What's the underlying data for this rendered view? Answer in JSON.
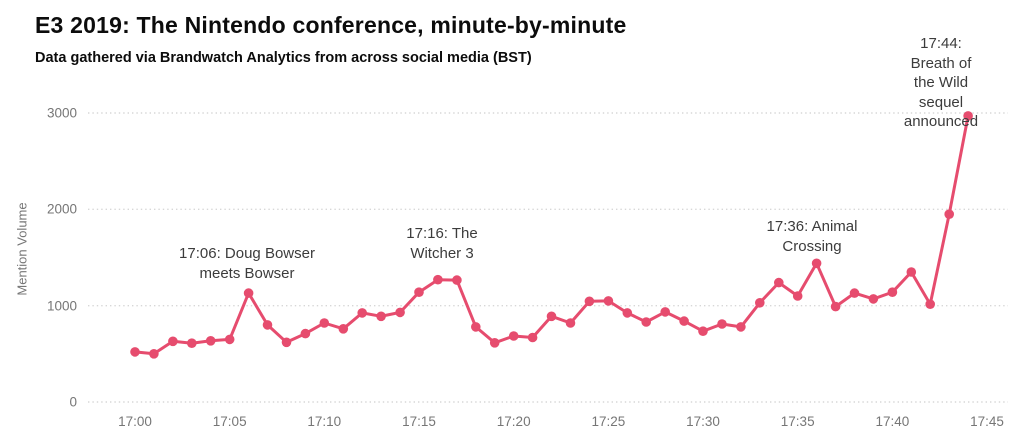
{
  "header": {
    "title": "E3 2019: The Nintendo conference, minute-by-minute",
    "subtitle": "Data gathered via Brandwatch Analytics from across social media (BST)"
  },
  "chart_data": {
    "type": "line",
    "title": "E3 2019: The Nintendo conference, minute-by-minute",
    "subtitle": "Data gathered via Brandwatch Analytics from across social media (BST)",
    "xlabel": "",
    "ylabel": "Mention Volume",
    "ylim": [
      0,
      3000
    ],
    "grid": "horizontal-dotted",
    "legend": "none",
    "line_color": "#e64c6e",
    "marker": "circle",
    "y_tick_labels": [
      "0",
      "1000",
      "2000",
      "3000"
    ],
    "x_tick_labels": [
      "17:00",
      "17:05",
      "17:10",
      "17:15",
      "17:20",
      "17:25",
      "17:30",
      "17:35",
      "17:40",
      "17:45"
    ],
    "x": [
      "17:00",
      "17:01",
      "17:02",
      "17:03",
      "17:04",
      "17:05",
      "17:06",
      "17:07",
      "17:08",
      "17:09",
      "17:10",
      "17:11",
      "17:12",
      "17:13",
      "17:14",
      "17:15",
      "17:16",
      "17:17",
      "17:18",
      "17:19",
      "17:20",
      "17:21",
      "17:22",
      "17:23",
      "17:24",
      "17:25",
      "17:26",
      "17:27",
      "17:28",
      "17:29",
      "17:30",
      "17:31",
      "17:32",
      "17:33",
      "17:34",
      "17:35",
      "17:36",
      "17:37",
      "17:38",
      "17:39",
      "17:40",
      "17:41",
      "17:42",
      "17:43",
      "17:44"
    ],
    "values": [
      520,
      500,
      630,
      610,
      635,
      650,
      1130,
      800,
      620,
      710,
      820,
      760,
      925,
      890,
      930,
      1140,
      1270,
      1265,
      780,
      615,
      685,
      670,
      890,
      820,
      1045,
      1050,
      925,
      830,
      935,
      840,
      735,
      810,
      780,
      1030,
      1240,
      1100,
      1440,
      990,
      1130,
      1070,
      1140,
      1350,
      1015,
      1950,
      2970
    ],
    "annotations": [
      {
        "time": "17:06",
        "text": "17:06: Doug Bowser\nmeets Bowser"
      },
      {
        "time": "17:16",
        "text": "17:16: The\nWitcher 3"
      },
      {
        "time": "17:36",
        "text": "17:36: Animal\nCrossing"
      },
      {
        "time": "17:44",
        "text": "17:44: Breath of\nthe Wild sequel\nannounced"
      }
    ]
  }
}
